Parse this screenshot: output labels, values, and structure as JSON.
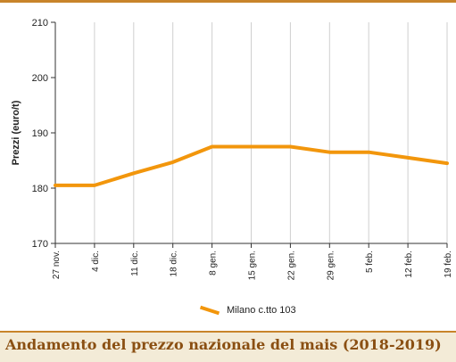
{
  "chart_data": {
    "type": "line",
    "categories": [
      "27 nov.",
      "4 dic.",
      "11 dic.",
      "18 dic.",
      "8 gen.",
      "15 gen.",
      "22 gen.",
      "29 gen.",
      "5 feb.",
      "12 feb.",
      "19 feb."
    ],
    "series": [
      {
        "name": "Milano  c.tto 103",
        "values": [
          180.5,
          180.5,
          182.7,
          184.7,
          187.5,
          187.5,
          187.5,
          186.5,
          186.5,
          185.5,
          184.5
        ],
        "color": "#f2960c"
      }
    ],
    "ylabel": "Prezzi (euro/t)",
    "ylim": [
      170,
      210
    ],
    "yticks": [
      170,
      180,
      190,
      200,
      210
    ],
    "grid": "vertical",
    "legend": "bottom"
  },
  "caption": {
    "title": "Andamento del prezzo nazionale del mais (2018-2019)"
  },
  "colors": {
    "accent": "#c8842a",
    "caption_bg": "#f3ebd7",
    "caption_text": "#8a4f12",
    "grid": "#cfcfcf"
  }
}
